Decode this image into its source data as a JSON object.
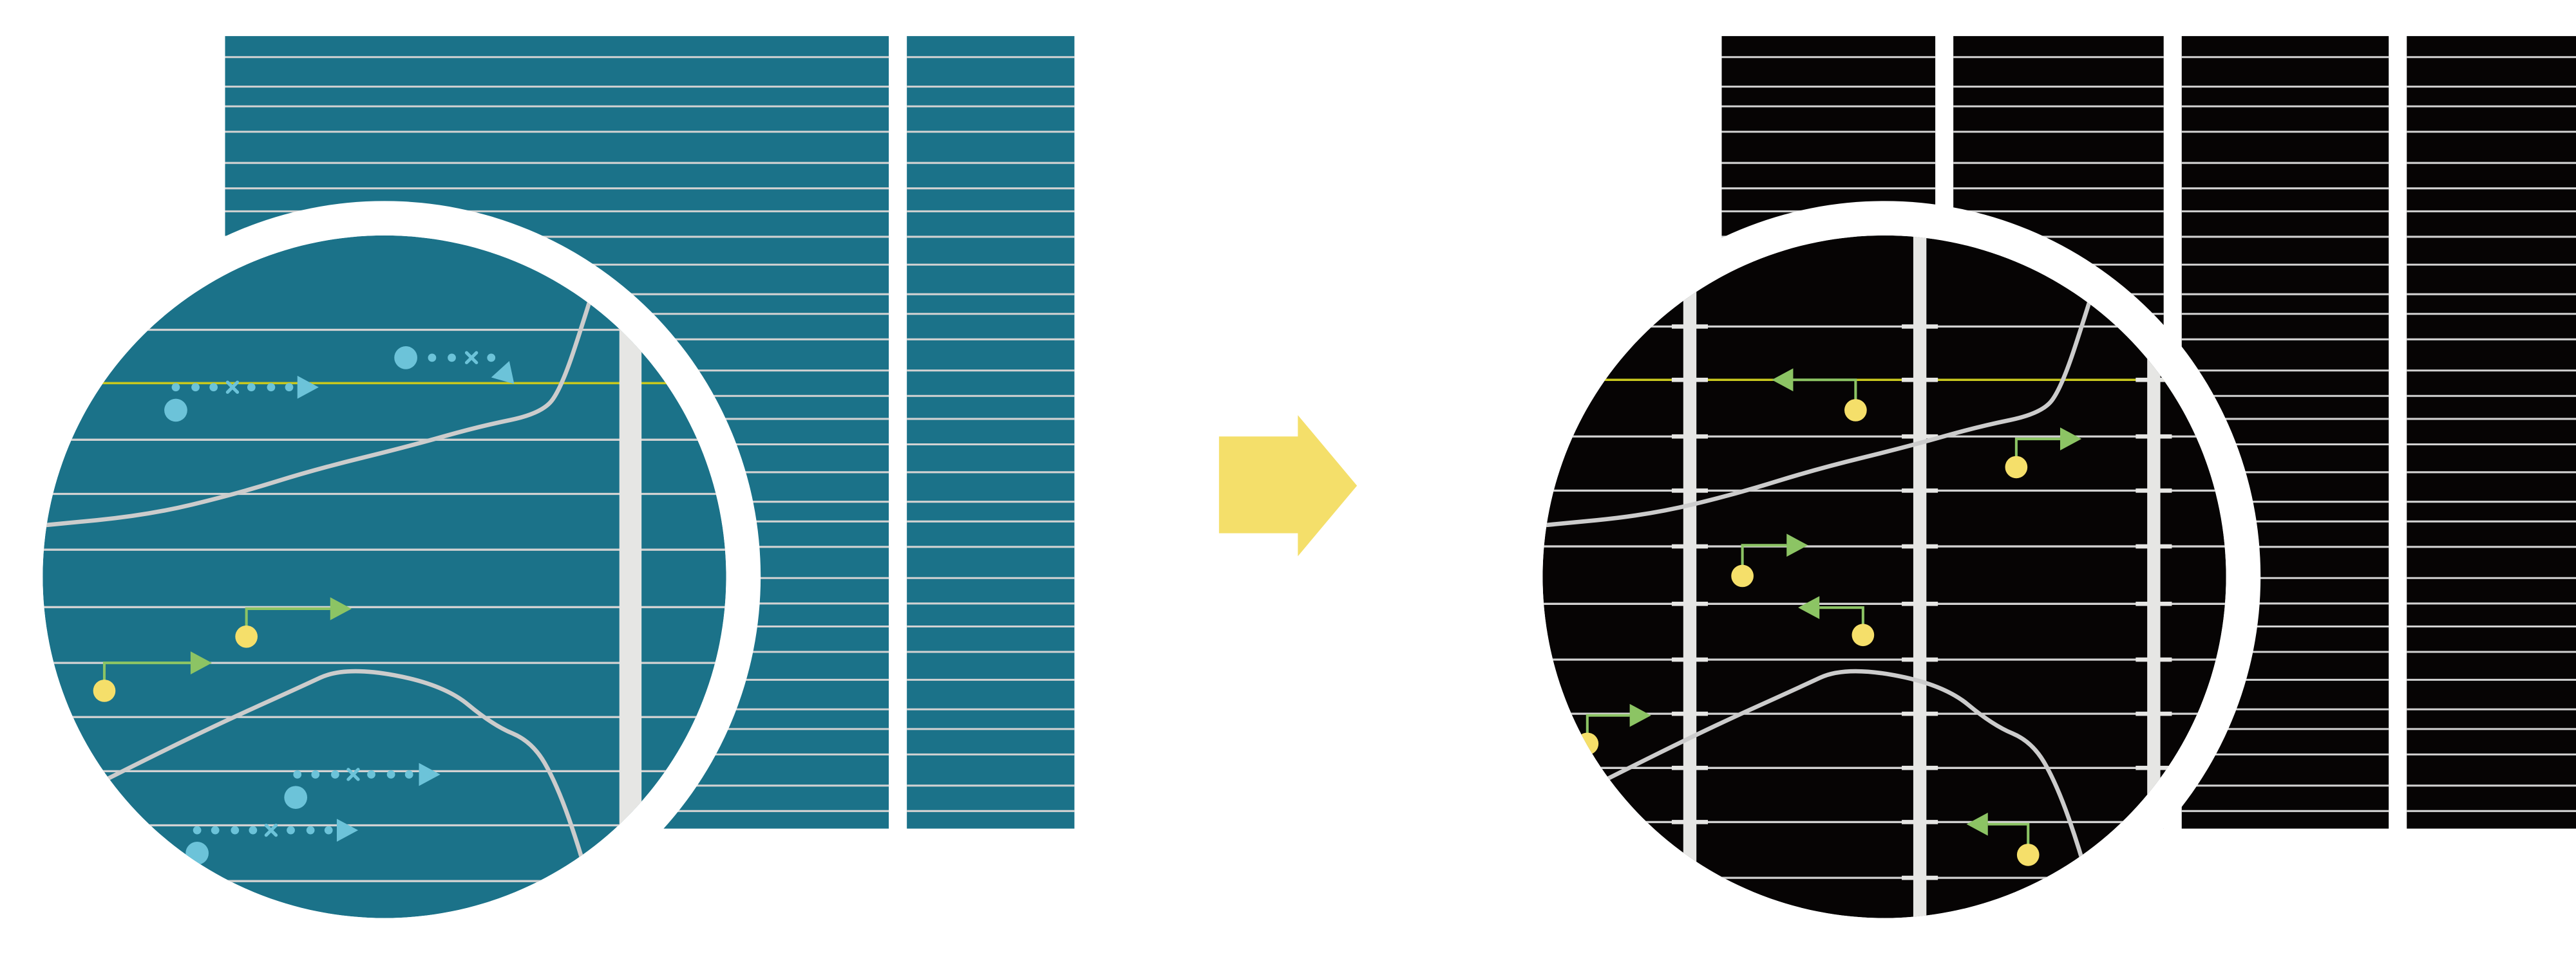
{
  "colors": {
    "background": "#ffffff",
    "before_panel": "#1b7289",
    "after_panel": "#060404",
    "grid_line": "#d2d2d2",
    "highlight_line": "#c8c81e",
    "bar": "#e6e6e4",
    "curve": "#cccccc",
    "dotted_arrow": "#6cc3d9",
    "green_arrow": "#8cc464",
    "yellow_dot": "#f5df6a",
    "transition_arrow": "#f4df6a"
  },
  "icons": {
    "transition": "arrow-right-icon",
    "magnifier": "magnifier-circle-icon"
  }
}
